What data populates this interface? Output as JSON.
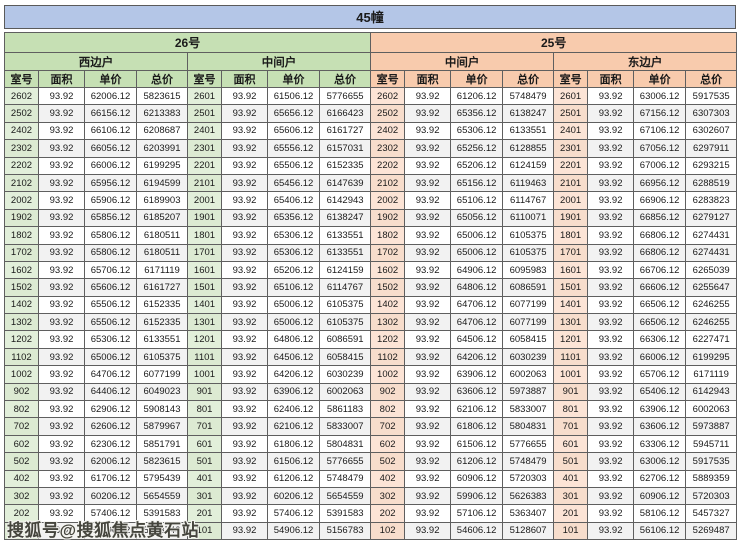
{
  "title": "45幢",
  "watermark": "搜狐号@搜狐焦点黄石站",
  "colors": {
    "title_bar": "#b4c6e7",
    "building_26": "#c6e0b4",
    "building_26_room_tint": "#e2efda",
    "building_25": "#f8cbad",
    "building_25_room_tint": "#fce4d6",
    "alt_row": "#f2f2f2",
    "border": "#5f5f5f"
  },
  "sections": [
    {
      "name": "26号",
      "units": [
        "西边户",
        "中间户"
      ]
    },
    {
      "name": "25号",
      "units": [
        "中间户",
        "东边户"
      ]
    }
  ],
  "column_headers": [
    "室号",
    "面积",
    "单价",
    "总价"
  ],
  "rows": [
    [
      "2602",
      "93.92",
      "62006.12",
      "5823615",
      "2601",
      "93.92",
      "61506.12",
      "5776655",
      "2602",
      "93.92",
      "61206.12",
      "5748479",
      "2601",
      "93.92",
      "63006.12",
      "5917535"
    ],
    [
      "2502",
      "93.92",
      "66156.12",
      "6213383",
      "2501",
      "93.92",
      "65656.12",
      "6166423",
      "2502",
      "93.92",
      "65356.12",
      "6138247",
      "2501",
      "93.92",
      "67156.12",
      "6307303"
    ],
    [
      "2402",
      "93.92",
      "66106.12",
      "6208687",
      "2401",
      "93.92",
      "65606.12",
      "6161727",
      "2402",
      "93.92",
      "65306.12",
      "6133551",
      "2401",
      "93.92",
      "67106.12",
      "6302607"
    ],
    [
      "2302",
      "93.92",
      "66056.12",
      "6203991",
      "2301",
      "93.92",
      "65556.12",
      "6157031",
      "2302",
      "93.92",
      "65256.12",
      "6128855",
      "2301",
      "93.92",
      "67056.12",
      "6297911"
    ],
    [
      "2202",
      "93.92",
      "66006.12",
      "6199295",
      "2201",
      "93.92",
      "65506.12",
      "6152335",
      "2202",
      "93.92",
      "65206.12",
      "6124159",
      "2201",
      "93.92",
      "67006.12",
      "6293215"
    ],
    [
      "2102",
      "93.92",
      "65956.12",
      "6194599",
      "2101",
      "93.92",
      "65456.12",
      "6147639",
      "2102",
      "93.92",
      "65156.12",
      "6119463",
      "2101",
      "93.92",
      "66956.12",
      "6288519"
    ],
    [
      "2002",
      "93.92",
      "65906.12",
      "6189903",
      "2001",
      "93.92",
      "65406.12",
      "6142943",
      "2002",
      "93.92",
      "65106.12",
      "6114767",
      "2001",
      "93.92",
      "66906.12",
      "6283823"
    ],
    [
      "1902",
      "93.92",
      "65856.12",
      "6185207",
      "1901",
      "93.92",
      "65356.12",
      "6138247",
      "1902",
      "93.92",
      "65056.12",
      "6110071",
      "1901",
      "93.92",
      "66856.12",
      "6279127"
    ],
    [
      "1802",
      "93.92",
      "65806.12",
      "6180511",
      "1801",
      "93.92",
      "65306.12",
      "6133551",
      "1802",
      "93.92",
      "65006.12",
      "6105375",
      "1801",
      "93.92",
      "66806.12",
      "6274431"
    ],
    [
      "1702",
      "93.92",
      "65806.12",
      "6180511",
      "1701",
      "93.92",
      "65306.12",
      "6133551",
      "1702",
      "93.92",
      "65006.12",
      "6105375",
      "1701",
      "93.92",
      "66806.12",
      "6274431"
    ],
    [
      "1602",
      "93.92",
      "65706.12",
      "6171119",
      "1601",
      "93.92",
      "65206.12",
      "6124159",
      "1602",
      "93.92",
      "64906.12",
      "6095983",
      "1601",
      "93.92",
      "66706.12",
      "6265039"
    ],
    [
      "1502",
      "93.92",
      "65606.12",
      "6161727",
      "1501",
      "93.92",
      "65106.12",
      "6114767",
      "1502",
      "93.92",
      "64806.12",
      "6086591",
      "1501",
      "93.92",
      "66606.12",
      "6255647"
    ],
    [
      "1402",
      "93.92",
      "65506.12",
      "6152335",
      "1401",
      "93.92",
      "65006.12",
      "6105375",
      "1402",
      "93.92",
      "64706.12",
      "6077199",
      "1401",
      "93.92",
      "66506.12",
      "6246255"
    ],
    [
      "1302",
      "93.92",
      "65506.12",
      "6152335",
      "1301",
      "93.92",
      "65006.12",
      "6105375",
      "1302",
      "93.92",
      "64706.12",
      "6077199",
      "1301",
      "93.92",
      "66506.12",
      "6246255"
    ],
    [
      "1202",
      "93.92",
      "65306.12",
      "6133551",
      "1201",
      "93.92",
      "64806.12",
      "6086591",
      "1202",
      "93.92",
      "64506.12",
      "6058415",
      "1201",
      "93.92",
      "66306.12",
      "6227471"
    ],
    [
      "1102",
      "93.92",
      "65006.12",
      "6105375",
      "1101",
      "93.92",
      "64506.12",
      "6058415",
      "1102",
      "93.92",
      "64206.12",
      "6030239",
      "1101",
      "93.92",
      "66006.12",
      "6199295"
    ],
    [
      "1002",
      "93.92",
      "64706.12",
      "6077199",
      "1001",
      "93.92",
      "64206.12",
      "6030239",
      "1002",
      "93.92",
      "63906.12",
      "6002063",
      "1001",
      "93.92",
      "65706.12",
      "6171119"
    ],
    [
      "902",
      "93.92",
      "64406.12",
      "6049023",
      "901",
      "93.92",
      "63906.12",
      "6002063",
      "902",
      "93.92",
      "63606.12",
      "5973887",
      "901",
      "93.92",
      "65406.12",
      "6142943"
    ],
    [
      "802",
      "93.92",
      "62906.12",
      "5908143",
      "801",
      "93.92",
      "62406.12",
      "5861183",
      "802",
      "93.92",
      "62106.12",
      "5833007",
      "801",
      "93.92",
      "63906.12",
      "6002063"
    ],
    [
      "702",
      "93.92",
      "62606.12",
      "5879967",
      "701",
      "93.92",
      "62106.12",
      "5833007",
      "702",
      "93.92",
      "61806.12",
      "5804831",
      "701",
      "93.92",
      "63606.12",
      "5973887"
    ],
    [
      "602",
      "93.92",
      "62306.12",
      "5851791",
      "601",
      "93.92",
      "61806.12",
      "5804831",
      "602",
      "93.92",
      "61506.12",
      "5776655",
      "601",
      "93.92",
      "63306.12",
      "5945711"
    ],
    [
      "502",
      "93.92",
      "62006.12",
      "5823615",
      "501",
      "93.92",
      "61506.12",
      "5776655",
      "502",
      "93.92",
      "61206.12",
      "5748479",
      "501",
      "93.92",
      "63006.12",
      "5917535"
    ],
    [
      "402",
      "93.92",
      "61706.12",
      "5795439",
      "401",
      "93.92",
      "61206.12",
      "5748479",
      "402",
      "93.92",
      "60906.12",
      "5720303",
      "401",
      "93.92",
      "62706.12",
      "5889359"
    ],
    [
      "302",
      "93.92",
      "60206.12",
      "5654559",
      "301",
      "93.92",
      "60206.12",
      "5654559",
      "302",
      "93.92",
      "59906.12",
      "5626383",
      "301",
      "93.92",
      "60906.12",
      "5720303"
    ],
    [
      "202",
      "93.92",
      "57406.12",
      "5391583",
      "201",
      "93.92",
      "57406.12",
      "5391583",
      "202",
      "93.92",
      "57106.12",
      "5363407",
      "201",
      "93.92",
      "58106.12",
      "5457327"
    ],
    [
      "102",
      "93.92",
      "55406.12",
      "5203743",
      "101",
      "93.92",
      "54906.12",
      "5156783",
      "102",
      "93.92",
      "54606.12",
      "5128607",
      "101",
      "93.92",
      "56106.12",
      "5269487"
    ]
  ]
}
